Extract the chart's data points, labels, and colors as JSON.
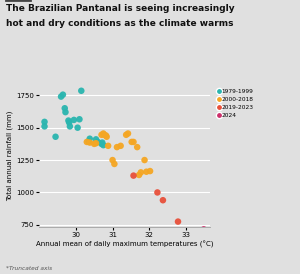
{
  "title_line1": "The Brazilian Pantanal is seeing increasingly",
  "title_line2": "hot and dry conditions as the climate warms",
  "xlabel": "Annual mean of daily maximum temperatures (°C)",
  "ylabel": "Total annual rainfall (mm)",
  "footnote": "*Truncated axis",
  "background_color": "#e0e0e0",
  "xlim": [
    29.0,
    33.65
  ],
  "ylim": [
    730,
    1830
  ],
  "xticks": [
    30,
    31,
    32,
    33
  ],
  "yticks": [
    750,
    1000,
    1250,
    1500,
    1750
  ],
  "series": [
    {
      "label": "1979-1999",
      "color": "#2ab5af",
      "points": [
        [
          29.15,
          1510
        ],
        [
          29.15,
          1545
        ],
        [
          29.45,
          1430
        ],
        [
          29.6,
          1740
        ],
        [
          29.65,
          1755
        ],
        [
          29.7,
          1650
        ],
        [
          29.72,
          1620
        ],
        [
          29.8,
          1555
        ],
        [
          29.82,
          1540
        ],
        [
          29.84,
          1510
        ],
        [
          29.95,
          1560
        ],
        [
          30.05,
          1500
        ],
        [
          30.1,
          1565
        ],
        [
          30.15,
          1785
        ],
        [
          30.35,
          1395
        ],
        [
          30.38,
          1415
        ],
        [
          30.55,
          1410
        ],
        [
          30.6,
          1390
        ],
        [
          30.7,
          1375
        ],
        [
          30.72,
          1385
        ],
        [
          30.75,
          1365
        ]
      ]
    },
    {
      "label": "2000-2018",
      "color": "#f5a623",
      "points": [
        [
          30.3,
          1390
        ],
        [
          30.38,
          1385
        ],
        [
          30.5,
          1375
        ],
        [
          30.55,
          1380
        ],
        [
          30.7,
          1445
        ],
        [
          30.75,
          1455
        ],
        [
          30.77,
          1445
        ],
        [
          30.82,
          1440
        ],
        [
          30.84,
          1430
        ],
        [
          30.88,
          1360
        ],
        [
          31.0,
          1250
        ],
        [
          31.05,
          1220
        ],
        [
          31.12,
          1350
        ],
        [
          31.22,
          1360
        ],
        [
          31.37,
          1445
        ],
        [
          31.42,
          1455
        ],
        [
          31.52,
          1390
        ],
        [
          31.57,
          1390
        ],
        [
          31.67,
          1350
        ],
        [
          31.72,
          1135
        ],
        [
          31.77,
          1155
        ],
        [
          31.87,
          1250
        ],
        [
          31.92,
          1160
        ],
        [
          32.02,
          1165
        ]
      ]
    },
    {
      "label": "2019-2023",
      "color": "#e8503a",
      "points": [
        [
          31.57,
          1130
        ],
        [
          32.22,
          1000
        ],
        [
          32.37,
          940
        ],
        [
          32.78,
          775
        ]
      ]
    },
    {
      "label": "2024",
      "color": "#cc2f6b",
      "points": [
        [
          33.48,
          715
        ]
      ]
    }
  ]
}
